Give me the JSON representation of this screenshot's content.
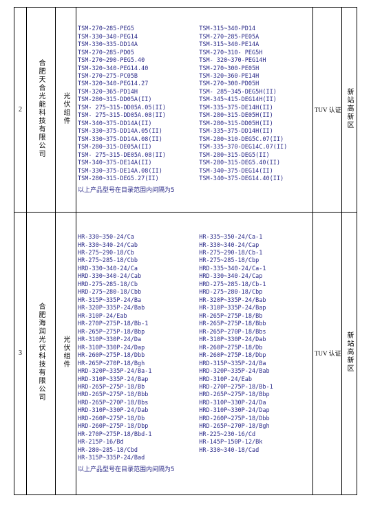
{
  "rows": [
    {
      "index": "2",
      "company": "合肥天合光能科技有限公司",
      "type": "光伏组件",
      "cert": "TUV 认证",
      "area": "新站高新区",
      "modelsLeft": [
        "TSM-270~285-PEG5",
        "TSM-330~340-PEG14",
        "TSM-330~335-DD14A",
        "TSM-270~285-PD05",
        "TSM-270~290-PEG5.40",
        "TSM-320~340-PEG14.40",
        "TSM-270~275-PC05B",
        "TSM-320~340-PEG14.27",
        "TSM-320~365-PD14H",
        "TSM-280~315-DD05A(II)",
        "TSM- 275~315-DD05A.05(II)",
        "TSM- 275~315-DD05A.08(II)",
        "TSM-340~375-DD14A(II)",
        "TSM-330~375-DD14A.05(II)",
        "TSM-330~375-DD14A.08(II)",
        "TSM-280~315-DE05A(II)",
        "TSM- 275~315-DE05A.08(II)",
        "TSM-340~375-DE14A(II)",
        "TSM-330~375-DE14A.08(II)",
        "TSM-280~315-DEG5.27(II)"
      ],
      "modelsRight": [
        "TSM-315~340-PD14",
        "TSM-270~285-PE05A",
        "TSM-315~340-PE14A",
        "TSM-270~310- PEG5H",
        "TSM- 320~370-PEG14H",
        "TSM-270~300-PE05H",
        "TSM-320~360-PE14H",
        "TSM-270~300-PD05H",
        "TSM- 285~345-DEG5H(II)",
        "TSM-345~415-DEG14H(II)",
        "TSM-335~375-DE14H(II)",
        "TSM-280~315-DE05H(II)",
        "TSM-280~315-DD05H(II)",
        "TSM-335~375-DD14H(II)",
        "TSM-280~310-DEG5C.07(II)",
        "TSM-335~370-DEG14C.07(II)",
        "TSM-280~315-DEG5(II)",
        "TSM-280~315-DEG5.40(II)",
        "TSM-340~375-DEG14(II)",
        "TSM-340~375-DEG14.40(II)"
      ],
      "note": "以上产品型号在目录范围内间隔为5"
    },
    {
      "index": "3",
      "company": "合肥海润光伏科技有限公司",
      "type": "光伏组件",
      "cert": "TUV 认证",
      "area": "新站高新区",
      "modelsLeft": [
        "HR-330~350-24/Ca",
        "HR-330~340-24/Cab",
        "HR-275~290-18/Cb",
        "HR-275~285-18/Cbb",
        "HRD-330~340-24/Ca",
        "HRD-330~340-24/Cab",
        "HRD-275~285-18/Cb",
        "HRD-275~280-18/Cbb",
        "HR-315P~335P-24/Ba",
        "HR-320P~335P-24/Bab",
        "HR-310P-24/Eab",
        "HR-270P~275P-18/Bb-1",
        "HR-265P~275P-18/Bbp",
        "HR-310P~330P-24/Da",
        "HR-310P~330P-24/Dap",
        "HR-260P~275P-18/Dbb",
        "HR-265P~270P-18/Bgh",
        "HRD-320P~335P-24/Ba-1",
        "HRD-310P~335P-24/Bap",
        "HRD-265P~275P-18/Bb",
        "HRD-265P~275P-18/Bbb",
        "HRD-265P~270P-18/Bbs",
        "HRD-310P~330P-24/Dab",
        "HRD-260P~275P-18/Db",
        "HRD-260P~275P-18/Dbp",
        "HR-270P~275P-18/Bbd-1",
        "HR-215P-16/Bd",
        "HR-280~285-18/Cbd",
        "HR-315P~335P-24/Bad"
      ],
      "modelsRight": [
        "HR-335~350-24/Ca-1",
        "HR-330~340-24/Cap",
        "HR-275~290-18/Cb-1",
        "HR-275~285-18/Cbp",
        "HRD-335~340-24/Ca-1",
        "HRD-330~340-24/Cap",
        "HRD-275~285-18/Cb-1",
        "HRD-275~280-18/Cbp",
        "HR-320P~335P-24/Bab",
        "HR-310P~335P-24/Bap",
        "HR-265P~275P-18/Bb",
        "HR-265P~275P-18/Bbb",
        "HR-265P~270P-18/Bbs",
        "HR-310P~330P-24/Dab",
        "HR-260P~275P-18/Db",
        "HR-260P~275P-18/Dbp",
        "HRD-315P~335P-24/Ba",
        "HRD-320P~335P-24/Bab",
        "HRD-310P-24/Eab",
        "HRD-270P~275P-18/Bb-1",
        "HRD-265P~275P-18/Bbp",
        "HRD-310P~330P-24/Da",
        "HRD-310P~330P-24/Dap",
        "HRD-260P~275P-18/Dbb",
        "HRD-265P~270P-18/Bgh",
        "HR-225~230-16/Cd",
        "HR-145P~150P-12/Bk",
        "HR-330~340-18/Cad"
      ],
      "note": "以上产品型号在目录范围内间隔为5"
    }
  ]
}
